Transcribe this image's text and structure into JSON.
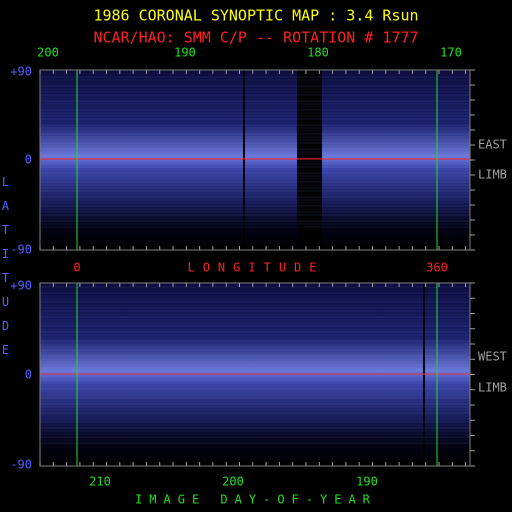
{
  "header": {
    "title": "1986 CORONAL SYNOPTIC MAP : 3.4 Rsun",
    "subtitle": "NCAR/HAO: SMM C/P -- ROTATION # 1777"
  },
  "top_panel": {
    "x_ticks": [
      "200",
      "190",
      "180",
      "170"
    ],
    "y_ticks": [
      "+90",
      "0",
      "-90"
    ],
    "side_label": [
      "EAST",
      "LIMB"
    ]
  },
  "middle_axis": {
    "start": "0",
    "label": "LONGITUDE",
    "end": "360"
  },
  "left_axis": {
    "label": "LATITUDE"
  },
  "bottom_panel": {
    "x_ticks": [
      "210",
      "200",
      "190"
    ],
    "y_ticks": [
      "+90",
      "0",
      "-90"
    ],
    "side_label": [
      "WEST",
      "LIMB"
    ],
    "x_label": "IMAGE DAY-OF-YEAR"
  }
}
